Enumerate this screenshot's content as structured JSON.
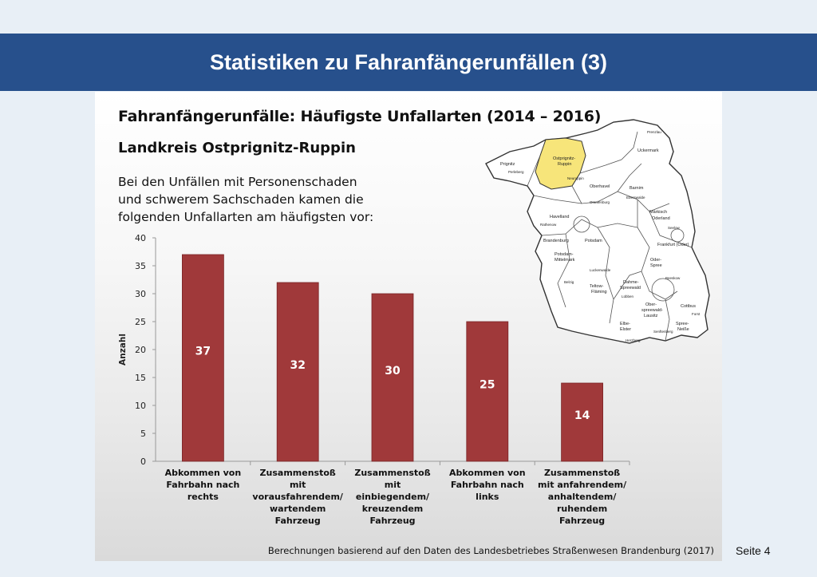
{
  "slide": {
    "heading": "Statistiken zu Fahranfängerunfällen (3)",
    "page_label": "Seite 4"
  },
  "panel": {
    "title": "Fahranfängerunfälle: Häufigste Unfallarten (2014 – 2016)",
    "subtitle": "Landkreis Ostprignitz-Ruppin",
    "intro": "Bei den Unfällen mit Personenschaden und schwerem Sachschaden kamen die folgenden Unfallarten am häufigsten vor:",
    "footnote": "Berechnungen basierend auf den Daten des Landesbetriebes Straßenwesen Brandenburg (2017)"
  },
  "map": {
    "highlight_color": "#f7e57a",
    "labels": [
      "Prignitz",
      "Perleberg",
      "Ostprignitz-Ruppin",
      "Neuruppin",
      "Prenzlau",
      "Uckermark",
      "Oberhavel",
      "Barnim",
      "Eberswalde",
      "Oranienburg",
      "Märkisch Oderland",
      "Seelow",
      "Havelland",
      "Rathenow",
      "Brandenburg",
      "Potsdam",
      "Frankfurt (Oder)",
      "Potsdam-Mittelmark",
      "Oder-Spree",
      "Beeskow",
      "Belzig",
      "Luckenwalde",
      "Teltow-Fläming",
      "Dahme-Spreewald",
      "Lübben",
      "Ober-spreewald-Lausitz",
      "Cottbus",
      "Forst",
      "Spree-Neiße",
      "Elbe-Elster",
      "Herzberg",
      "Senftenberg"
    ]
  },
  "chart_data": {
    "type": "bar",
    "categories": [
      [
        "Abkommen von",
        "Fahrbahn nach",
        "rechts"
      ],
      [
        "Zusammenstoß",
        "mit",
        "vorausfahrendem/",
        "wartendem",
        "Fahrzeug"
      ],
      [
        "Zusammenstoß",
        "mit",
        "einbiegendem/",
        "kreuzendem",
        "Fahrzeug"
      ],
      [
        "Abkommen von",
        "Fahrbahn nach",
        "links"
      ],
      [
        "Zusammenstoß",
        "mit anfahrendem/",
        "anhaltendem/",
        "ruhendem",
        "Fahrzeug"
      ]
    ],
    "values": [
      37,
      32,
      30,
      25,
      14
    ],
    "data_labels": [
      "37",
      "32",
      "30",
      "25",
      "14"
    ],
    "ylabel": "Anzahl",
    "ylim": [
      0,
      40
    ],
    "yticks": [
      "0",
      "5",
      "10",
      "15",
      "20",
      "25",
      "30",
      "35",
      "40"
    ],
    "bar_color": "#a0393a",
    "grid": false
  }
}
